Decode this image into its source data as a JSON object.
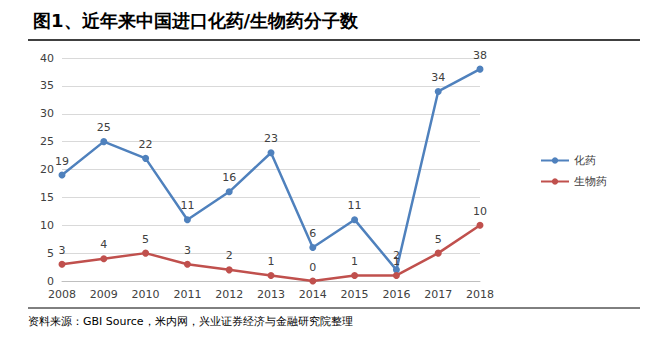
{
  "chart_data": {
    "type": "line",
    "title": "图1、近年来中国进口化药/生物药分子数",
    "source": "资料来源：GBI Source，米内网，兴业证券经济与金融研究院整理",
    "categories": [
      "2008",
      "2009",
      "2010",
      "2011",
      "2012",
      "2013",
      "2014",
      "2015",
      "2016",
      "2017",
      "2018"
    ],
    "series": [
      {
        "name": "化药",
        "color": "#4f81bd",
        "values": [
          19,
          25,
          22,
          11,
          16,
          23,
          6,
          11,
          2,
          34,
          38
        ]
      },
      {
        "name": "生物药",
        "color": "#c0504d",
        "values": [
          3,
          4,
          5,
          3,
          2,
          1,
          0,
          1,
          1,
          5,
          10
        ]
      }
    ],
    "ylim": [
      0,
      40
    ],
    "yticks": [
      0,
      5,
      10,
      15,
      20,
      25,
      30,
      35,
      40
    ],
    "grid": true,
    "legend": "right",
    "data_labels": true,
    "marker": "circle"
  }
}
